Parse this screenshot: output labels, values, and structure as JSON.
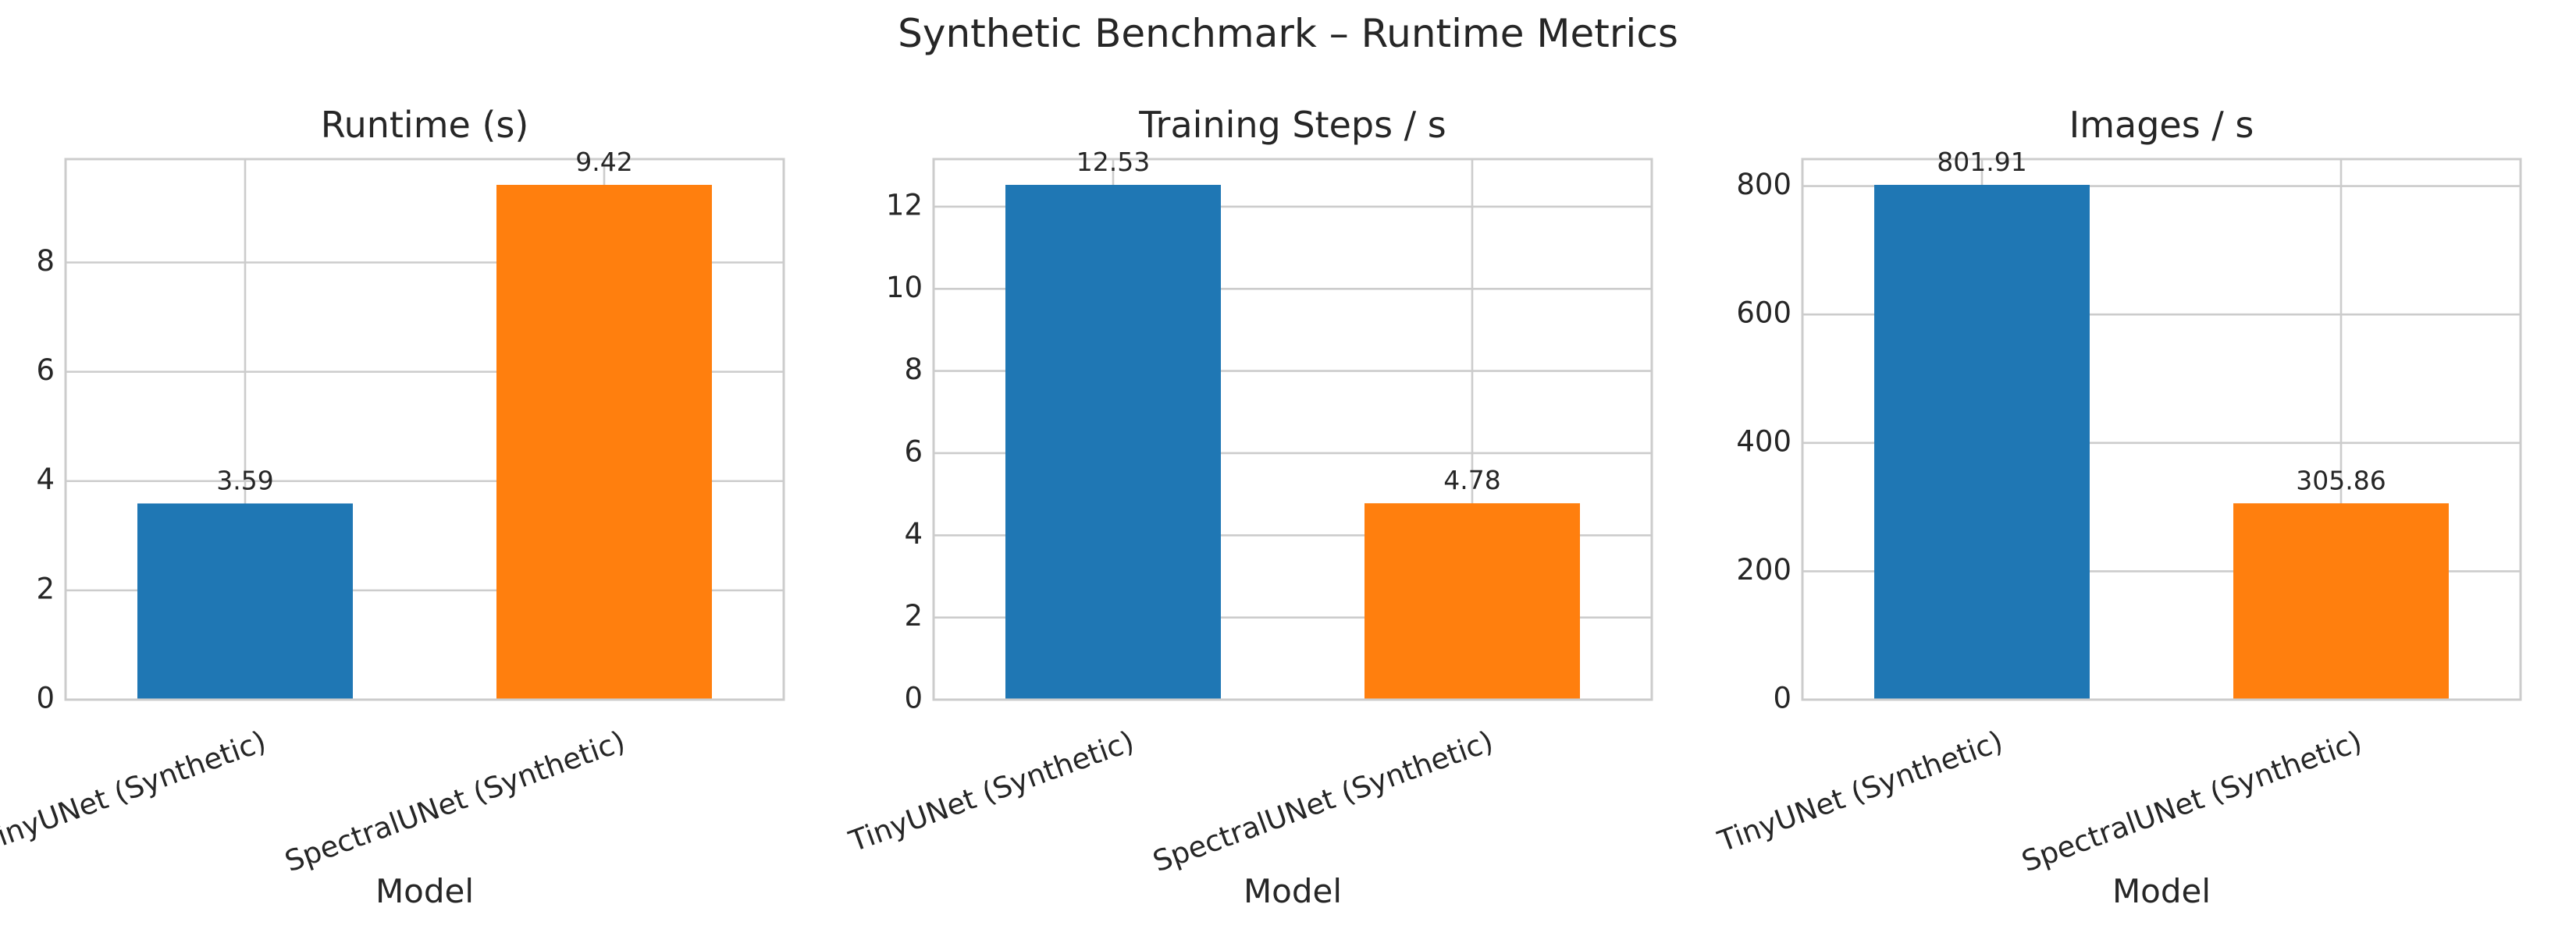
{
  "chart_data": {
    "title": "Synthetic Benchmark – Runtime Metrics",
    "charts": [
      {
        "type": "bar",
        "title": "Runtime (s)",
        "xlabel": "Model",
        "ylabel": "",
        "categories": [
          "TinyUNet (Synthetic)",
          "SpectralUNet (Synthetic)"
        ],
        "values": [
          3.59,
          9.42
        ],
        "value_labels": [
          "3.59",
          "9.42"
        ],
        "colors": [
          "#1f77b4",
          "#ff7f0e"
        ],
        "ylim": [
          0,
          9.891
        ],
        "yticks": [
          0,
          2,
          4,
          6,
          8
        ],
        "grid": true
      },
      {
        "type": "bar",
        "title": "Training Steps / s",
        "xlabel": "Model",
        "ylabel": "",
        "categories": [
          "TinyUNet (Synthetic)",
          "SpectralUNet (Synthetic)"
        ],
        "values": [
          12.53,
          4.78
        ],
        "value_labels": [
          "12.53",
          "4.78"
        ],
        "colors": [
          "#1f77b4",
          "#ff7f0e"
        ],
        "ylim": [
          0,
          13.1565
        ],
        "yticks": [
          0,
          2,
          4,
          6,
          8,
          10,
          12
        ],
        "grid": true
      },
      {
        "type": "bar",
        "title": "Images / s",
        "xlabel": "Model",
        "ylabel": "",
        "categories": [
          "TinyUNet (Synthetic)",
          "SpectralUNet (Synthetic)"
        ],
        "values": [
          801.91,
          305.86
        ],
        "value_labels": [
          "801.91",
          "305.86"
        ],
        "colors": [
          "#1f77b4",
          "#ff7f0e"
        ],
        "ylim": [
          0,
          842.0
        ],
        "yticks": [
          0,
          200,
          400,
          600,
          800
        ],
        "grid": true
      }
    ]
  }
}
